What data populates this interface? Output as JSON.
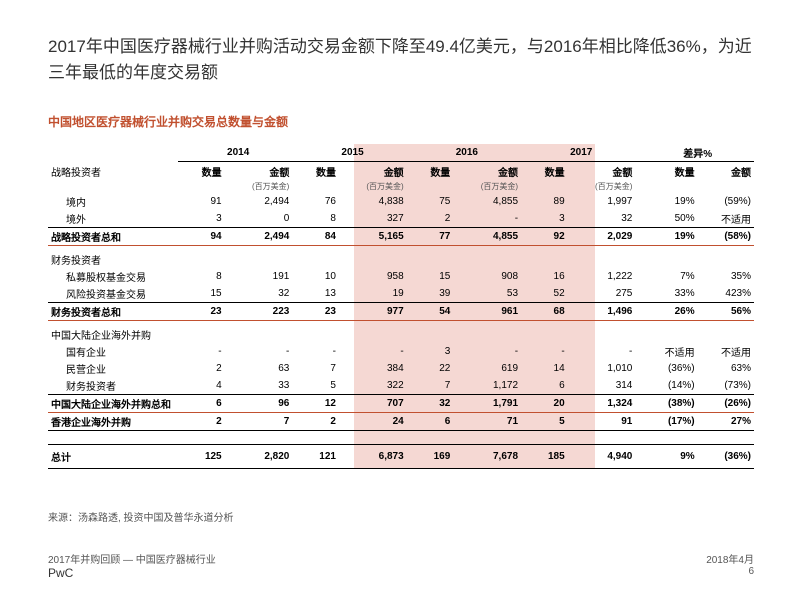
{
  "title": "2017年中国医疗器械行业并购活动交易金额下降至49.4亿美元，与2016年相比降低36%，为近三年最低的年度交易额",
  "subtitle": "中国地区医疗器械行业并购交易总数量与金额",
  "years": [
    "2014",
    "2015",
    "2016",
    "2017"
  ],
  "diffLabel": "差异%",
  "colQty": "数量",
  "colAmt": "金额",
  "unit": "(百万美金)",
  "highlight": {
    "leftPct": 43.3,
    "widthPct": 34.2,
    "color": "#f5d8d3"
  },
  "ruleColor": "#c1502f",
  "sections": [
    {
      "label": "战略投资者",
      "rows": [
        {
          "label": "境内",
          "cells": [
            "91",
            "2,494",
            "76",
            "4,838",
            "75",
            "4,855",
            "89",
            "1,997",
            "19%",
            "(59%)"
          ]
        },
        {
          "label": "境外",
          "cells": [
            "3",
            "0",
            "8",
            "327",
            "2",
            "-",
            "3",
            "32",
            "50%",
            "不适用"
          ],
          "underline": true
        }
      ],
      "total": {
        "label": "战略投资者总和",
        "cells": [
          "94",
          "2,494",
          "84",
          "5,165",
          "77",
          "4,855",
          "92",
          "2,029",
          "19%",
          "(58%)"
        ]
      }
    },
    {
      "label": "财务投资者",
      "rows": [
        {
          "label": "私募股权基金交易",
          "cells": [
            "8",
            "191",
            "10",
            "958",
            "15",
            "908",
            "16",
            "1,222",
            "7%",
            "35%"
          ]
        },
        {
          "label": "风险投资基金交易",
          "cells": [
            "15",
            "32",
            "13",
            "19",
            "39",
            "53",
            "52",
            "275",
            "33%",
            "423%"
          ],
          "underline": true
        }
      ],
      "total": {
        "label": "财务投资者总和",
        "cells": [
          "23",
          "223",
          "23",
          "977",
          "54",
          "961",
          "68",
          "1,496",
          "26%",
          "56%"
        ]
      }
    },
    {
      "label": "中国大陆企业海外并购",
      "rows": [
        {
          "label": "国有企业",
          "cells": [
            "-",
            "-",
            "-",
            "-",
            "3",
            "-",
            "-",
            "-",
            "不适用",
            "不适用"
          ]
        },
        {
          "label": "民营企业",
          "cells": [
            "2",
            "63",
            "7",
            "384",
            "22",
            "619",
            "14",
            "1,010",
            "(36%)",
            "63%"
          ]
        },
        {
          "label": "财务投资者",
          "cells": [
            "4",
            "33",
            "5",
            "322",
            "7",
            "1,172",
            "6",
            "314",
            "(14%)",
            "(73%)"
          ],
          "underline": true
        }
      ],
      "total": {
        "label": "中国大陆企业海外并购总和",
        "cells": [
          "6",
          "96",
          "12",
          "707",
          "32",
          "1,791",
          "20",
          "1,324",
          "(38%)",
          "(26%)"
        ]
      }
    },
    {
      "label": "",
      "rows": [],
      "total": {
        "label": "香港企业海外并购",
        "cells": [
          "2",
          "7",
          "2",
          "24",
          "6",
          "71",
          "5",
          "91",
          "(17%)",
          "27%"
        ],
        "underline": true
      }
    }
  ],
  "grandTotal": {
    "label": "总计",
    "cells": [
      "125",
      "2,820",
      "121",
      "6,873",
      "169",
      "7,678",
      "185",
      "4,940",
      "9%",
      "(36%)"
    ]
  },
  "source": "来源：汤森路透, 投资中国及普华永道分析",
  "footerLeft1": "2017年并购回顾 — 中国医疗器械行业",
  "footerLeft2": "PwC",
  "footerRight1": "2018年4月",
  "footerRight2": "6"
}
